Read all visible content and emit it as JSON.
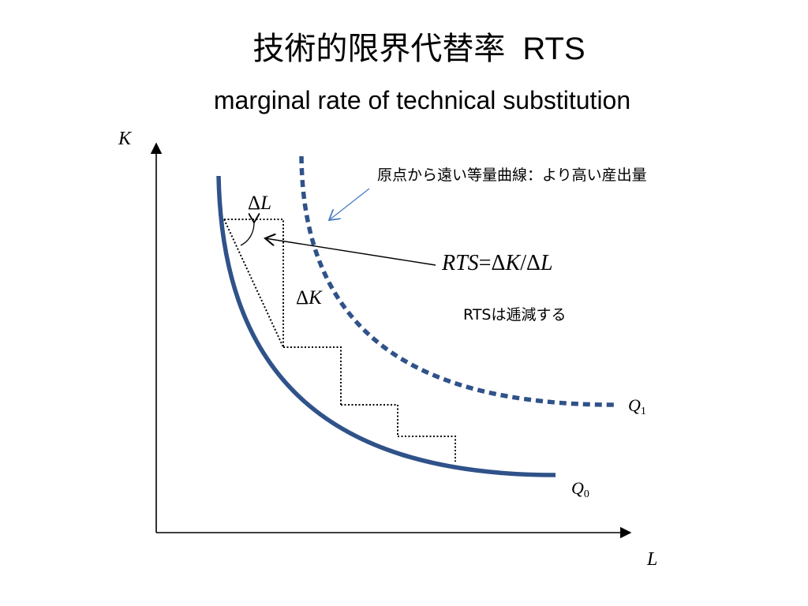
{
  "title": {
    "japanese": "技術的限界代替率",
    "abbreviation": "RTS",
    "english": "marginal rate of technical substitution"
  },
  "axes": {
    "y_label": "K",
    "x_label": "L"
  },
  "curves": {
    "q0": {
      "letter": "Q",
      "subscript": "0"
    },
    "q1": {
      "letter": "Q",
      "subscript": "1"
    }
  },
  "labels": {
    "delta": "Δ",
    "delta_l_var": "L",
    "delta_k_var": "K",
    "rts_lhs": "RTS",
    "rts_eq": "=",
    "rts_dk_var": "K",
    "rts_slash": "/",
    "rts_dl_var": "L"
  },
  "annotations": {
    "outer_curve_note": "原点から遠い等量曲線：より高い産出量",
    "diminishing_note": "RTSは逓減する"
  },
  "colors": {
    "curve": "#2F5289",
    "callout_arrow": "#4A7FC1",
    "text": "#000000"
  }
}
